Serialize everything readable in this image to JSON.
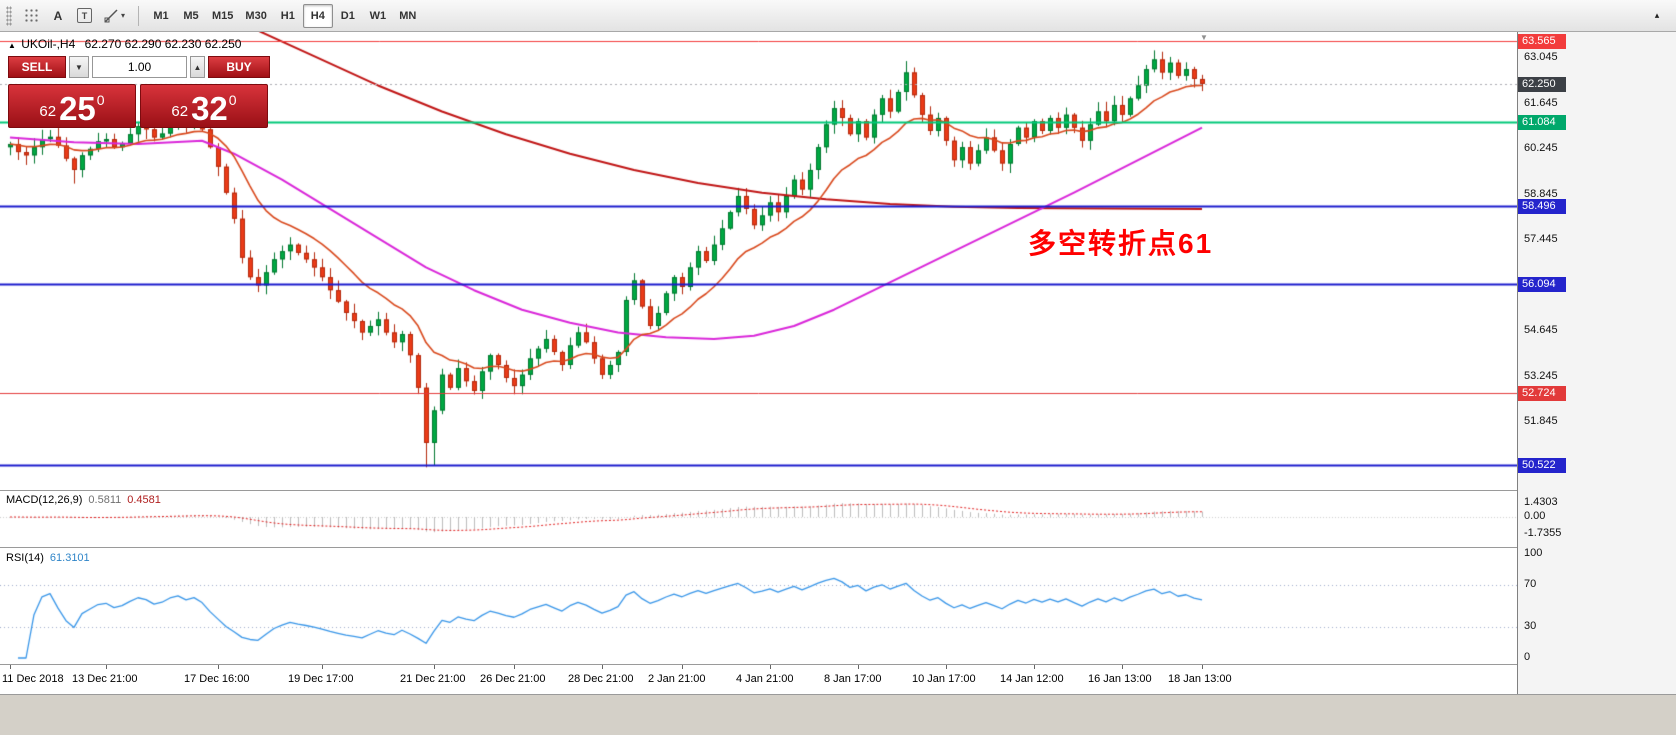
{
  "toolbar": {
    "tool_icons": {
      "text_a": "A",
      "text_t": "T",
      "caret": "▾",
      "overflow": "▴"
    },
    "timeframes": [
      "M1",
      "M5",
      "M15",
      "M30",
      "H1",
      "H4",
      "D1",
      "W1",
      "MN"
    ],
    "active_timeframe": "H4"
  },
  "quote": {
    "marker": "▲",
    "symbol": "UKOil-,H4",
    "values": "62.270 62.290 62.230 62.250"
  },
  "trade": {
    "sell_label": "SELL",
    "buy_label": "BUY",
    "volume": "1.00",
    "dropdown_glyph": "▼",
    "up_glyph": "▲",
    "bid": {
      "whole": "62",
      "pips": "25",
      "sup": "0"
    },
    "ask": {
      "whole": "62",
      "pips": "32",
      "sup": "0"
    }
  },
  "annotation": {
    "text": "多空转折点61",
    "color": "#ff0000"
  },
  "price_axis": {
    "labels": [
      {
        "text": "63.045",
        "price": 63.045
      },
      {
        "text": "61.645",
        "price": 61.645
      },
      {
        "text": "60.245",
        "price": 60.245
      },
      {
        "text": "58.845",
        "price": 58.845
      },
      {
        "text": "57.445",
        "price": 57.445
      },
      {
        "text": "54.645",
        "price": 54.645
      },
      {
        "text": "53.245",
        "price": 53.245
      },
      {
        "text": "51.845",
        "price": 51.845
      }
    ],
    "badges": [
      {
        "text": "63.565",
        "price": 63.565,
        "bg": "#f23b3b"
      },
      {
        "text": "62.250",
        "price": 62.25,
        "bg": "#3c4046"
      },
      {
        "text": "61.084",
        "price": 61.084,
        "bg": "#00a86b"
      },
      {
        "text": "58.496",
        "price": 58.496,
        "bg": "#2424cc"
      },
      {
        "text": "56.094",
        "price": 56.094,
        "bg": "#2424cc"
      },
      {
        "text": "52.724",
        "price": 52.724,
        "bg": "#e23a3a"
      },
      {
        "text": "50.522",
        "price": 50.522,
        "bg": "#2424cc"
      }
    ]
  },
  "macd_panel": {
    "name": "MACD(12,26,9)",
    "value_main": "0.5811",
    "value_signal": "0.4581",
    "axis": [
      {
        "text": "1.4303",
        "v": 1.4303
      },
      {
        "text": "0.00",
        "v": 0
      },
      {
        "text": "-1.7355",
        "v": -1.7355
      }
    ]
  },
  "rsi_panel": {
    "name": "RSI(14)",
    "value": "61.3101",
    "axis": [
      {
        "text": "100",
        "v": 100
      },
      {
        "text": "70",
        "v": 70
      },
      {
        "text": "30",
        "v": 30
      },
      {
        "text": "0",
        "v": 0
      }
    ]
  },
  "chart_data": {
    "type": "candlestick",
    "symbol": "UKOil-",
    "timeframe": "H4",
    "ohlc_display": {
      "open": 62.27,
      "high": 62.29,
      "low": 62.23,
      "close": 62.25
    },
    "bid": 62.25,
    "ask": 62.32,
    "price_range_labels": [
      63.045,
      50.445
    ],
    "candles": {
      "first_open": 60.3,
      "closes": [
        60.4,
        60.15,
        60.05,
        60.3,
        60.55,
        60.62,
        60.35,
        59.95,
        59.6,
        60.05,
        60.25,
        60.48,
        60.55,
        60.3,
        60.42,
        60.7,
        60.95,
        60.85,
        60.6,
        60.72,
        61.0,
        61.15,
        60.95,
        61.1,
        60.85,
        60.3,
        59.7,
        58.9,
        58.1,
        56.9,
        56.3,
        56.05,
        56.45,
        56.85,
        57.1,
        57.3,
        57.05,
        56.85,
        56.6,
        56.3,
        55.9,
        55.55,
        55.2,
        54.95,
        54.6,
        54.8,
        55.0,
        54.6,
        54.3,
        54.55,
        53.9,
        52.9,
        51.2,
        52.2,
        53.3,
        52.9,
        53.5,
        53.1,
        52.8,
        53.4,
        53.9,
        53.6,
        53.2,
        52.95,
        53.3,
        53.8,
        54.1,
        54.4,
        54.0,
        53.6,
        54.2,
        54.6,
        54.3,
        53.8,
        53.3,
        53.6,
        54.0,
        55.6,
        56.2,
        55.4,
        54.8,
        55.2,
        55.8,
        56.3,
        56.0,
        56.6,
        57.1,
        56.8,
        57.3,
        57.8,
        58.3,
        58.8,
        58.4,
        57.9,
        58.2,
        58.6,
        58.3,
        58.8,
        59.3,
        59.0,
        59.6,
        60.3,
        61.0,
        61.5,
        61.2,
        60.7,
        61.1,
        60.6,
        61.3,
        61.8,
        61.4,
        62.0,
        62.6,
        61.9,
        61.3,
        60.8,
        61.2,
        60.5,
        59.9,
        60.3,
        59.8,
        60.2,
        60.6,
        60.2,
        59.8,
        60.4,
        60.9,
        60.6,
        61.1,
        60.8,
        61.2,
        60.9,
        61.3,
        60.9,
        60.5,
        61.0,
        61.4,
        61.1,
        61.6,
        61.3,
        61.8,
        62.2,
        62.7,
        63.0,
        62.6,
        62.9,
        62.5,
        62.7,
        62.4,
        62.25
      ],
      "wick_overrides": {
        "8": {
          "low": 59.18
        },
        "52": {
          "low": 50.45
        },
        "53": {
          "low": 50.52
        },
        "91": {
          "high": 59.05
        },
        "112": {
          "high": 62.95
        },
        "143": {
          "high": 63.28
        }
      }
    },
    "moving_averages": {
      "fast": {
        "type": "ema",
        "period": 13,
        "color": "#d8481c"
      },
      "mid": {
        "color": "#d926d9",
        "path": [
          [
            0,
            60.6
          ],
          [
            8,
            60.45
          ],
          [
            16,
            60.4
          ],
          [
            24,
            60.5
          ],
          [
            28,
            60.1
          ],
          [
            34,
            59.3
          ],
          [
            40,
            58.4
          ],
          [
            46,
            57.5
          ],
          [
            52,
            56.6
          ],
          [
            58,
            55.9
          ],
          [
            64,
            55.3
          ],
          [
            70,
            54.9
          ],
          [
            76,
            54.6
          ],
          [
            82,
            54.45
          ],
          [
            88,
            54.4
          ],
          [
            93,
            54.5
          ],
          [
            98,
            54.8
          ],
          [
            103,
            55.3
          ],
          [
            108,
            55.9
          ],
          [
            113,
            56.5
          ],
          [
            118,
            57.1
          ],
          [
            123,
            57.7
          ],
          [
            128,
            58.3
          ],
          [
            133,
            58.9
          ],
          [
            137,
            59.4
          ],
          [
            141,
            59.9
          ],
          [
            145,
            60.4
          ],
          [
            149,
            60.9
          ]
        ]
      },
      "slow": {
        "color": "#c01515",
        "path": [
          [
            30,
            64.0
          ],
          [
            38,
            63.1
          ],
          [
            46,
            62.2
          ],
          [
            54,
            61.4
          ],
          [
            62,
            60.7
          ],
          [
            70,
            60.1
          ],
          [
            78,
            59.6
          ],
          [
            86,
            59.2
          ],
          [
            94,
            58.9
          ],
          [
            102,
            58.7
          ],
          [
            110,
            58.55
          ],
          [
            118,
            58.47
          ],
          [
            126,
            58.43
          ],
          [
            149,
            58.4
          ]
        ]
      }
    },
    "levels": [
      {
        "price": 63.565,
        "color": "#f23b3b",
        "width": 1
      },
      {
        "price": 61.084,
        "color": "#00c878",
        "width": 2
      },
      {
        "price": 58.496,
        "color": "#1a1acc",
        "width": 2
      },
      {
        "price": 56.094,
        "color": "#1a1acc",
        "width": 2
      },
      {
        "price": 52.724,
        "color": "#e23a3a",
        "width": 1
      },
      {
        "price": 50.522,
        "color": "#1a1acc",
        "width": 2
      }
    ],
    "current_price_line": {
      "price": 62.25,
      "color": "#a9a9b0"
    },
    "macd": {
      "fast": 12,
      "slow": 26,
      "signal": 9,
      "hist_color": "#bcbcbc",
      "signal_color": "#e02020",
      "current_main": 0.5811,
      "current_signal": 0.4581
    },
    "rsi": {
      "period": 14,
      "color": "#3795e8",
      "current": 61.3101,
      "levels": [
        70,
        30
      ],
      "level_color": "#9aa8c8"
    },
    "colors": {
      "up": "#00a843",
      "up_border": "#00772e",
      "down": "#ea3b17",
      "down_border": "#b3280c",
      "background": "#ffffff"
    },
    "time_labels": [
      {
        "bar": 0,
        "text": "11 Dec 2018"
      },
      {
        "bar": 12,
        "text": "13 Dec 21:00"
      },
      {
        "bar": 26,
        "text": "17 Dec 16:00"
      },
      {
        "bar": 39,
        "text": "19 Dec 17:00"
      },
      {
        "bar": 53,
        "text": "21 Dec 21:00"
      },
      {
        "bar": 63,
        "text": "26 Dec 21:00"
      },
      {
        "bar": 74,
        "text": "28 Dec 21:00"
      },
      {
        "bar": 84,
        "text": "2 Jan 21:00"
      },
      {
        "bar": 95,
        "text": "4 Jan 21:00"
      },
      {
        "bar": 106,
        "text": "8 Jan 17:00"
      },
      {
        "bar": 117,
        "text": "10 Jan 17:00"
      },
      {
        "bar": 128,
        "text": "14 Jan 12:00"
      },
      {
        "bar": 139,
        "text": "16 Jan 13:00"
      },
      {
        "bar": 149,
        "text": "18 Jan 13:00"
      }
    ]
  }
}
